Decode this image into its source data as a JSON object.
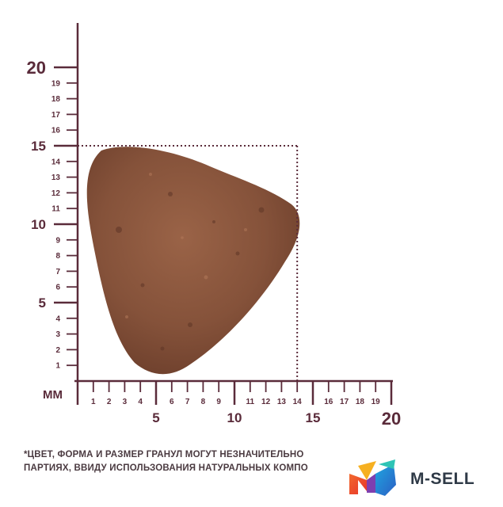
{
  "ruler": {
    "unit_label": "ММ",
    "max": 20,
    "major_ticks": [
      "5",
      "10",
      "15",
      "20"
    ],
    "minor_ticks": [
      "1",
      "2",
      "3",
      "4",
      "6",
      "7",
      "8",
      "9",
      "11",
      "12",
      "13",
      "14",
      "16",
      "17",
      "18",
      "19"
    ],
    "colors": {
      "axis": "#5a2b3a",
      "dotted_guide": "#5a2b3a"
    }
  },
  "kibble": {
    "width_mm": 14,
    "height_mm": 15,
    "color": "#8c5a3e"
  },
  "footnote": {
    "line1": "*ЦВЕТ, ФОРМА И РАЗМЕР ГРАНУЛ МОГУТ НЕЗНАЧИТЕЛЬНО",
    "line2": "ПАРТИЯХ, ВВИДУ ИСПОЛЬЗОВАНИЯ НАТУРАЛЬНЫХ КОМПО"
  },
  "logo": {
    "text": "M-SELL",
    "icon": "m-sell-logo-icon"
  }
}
